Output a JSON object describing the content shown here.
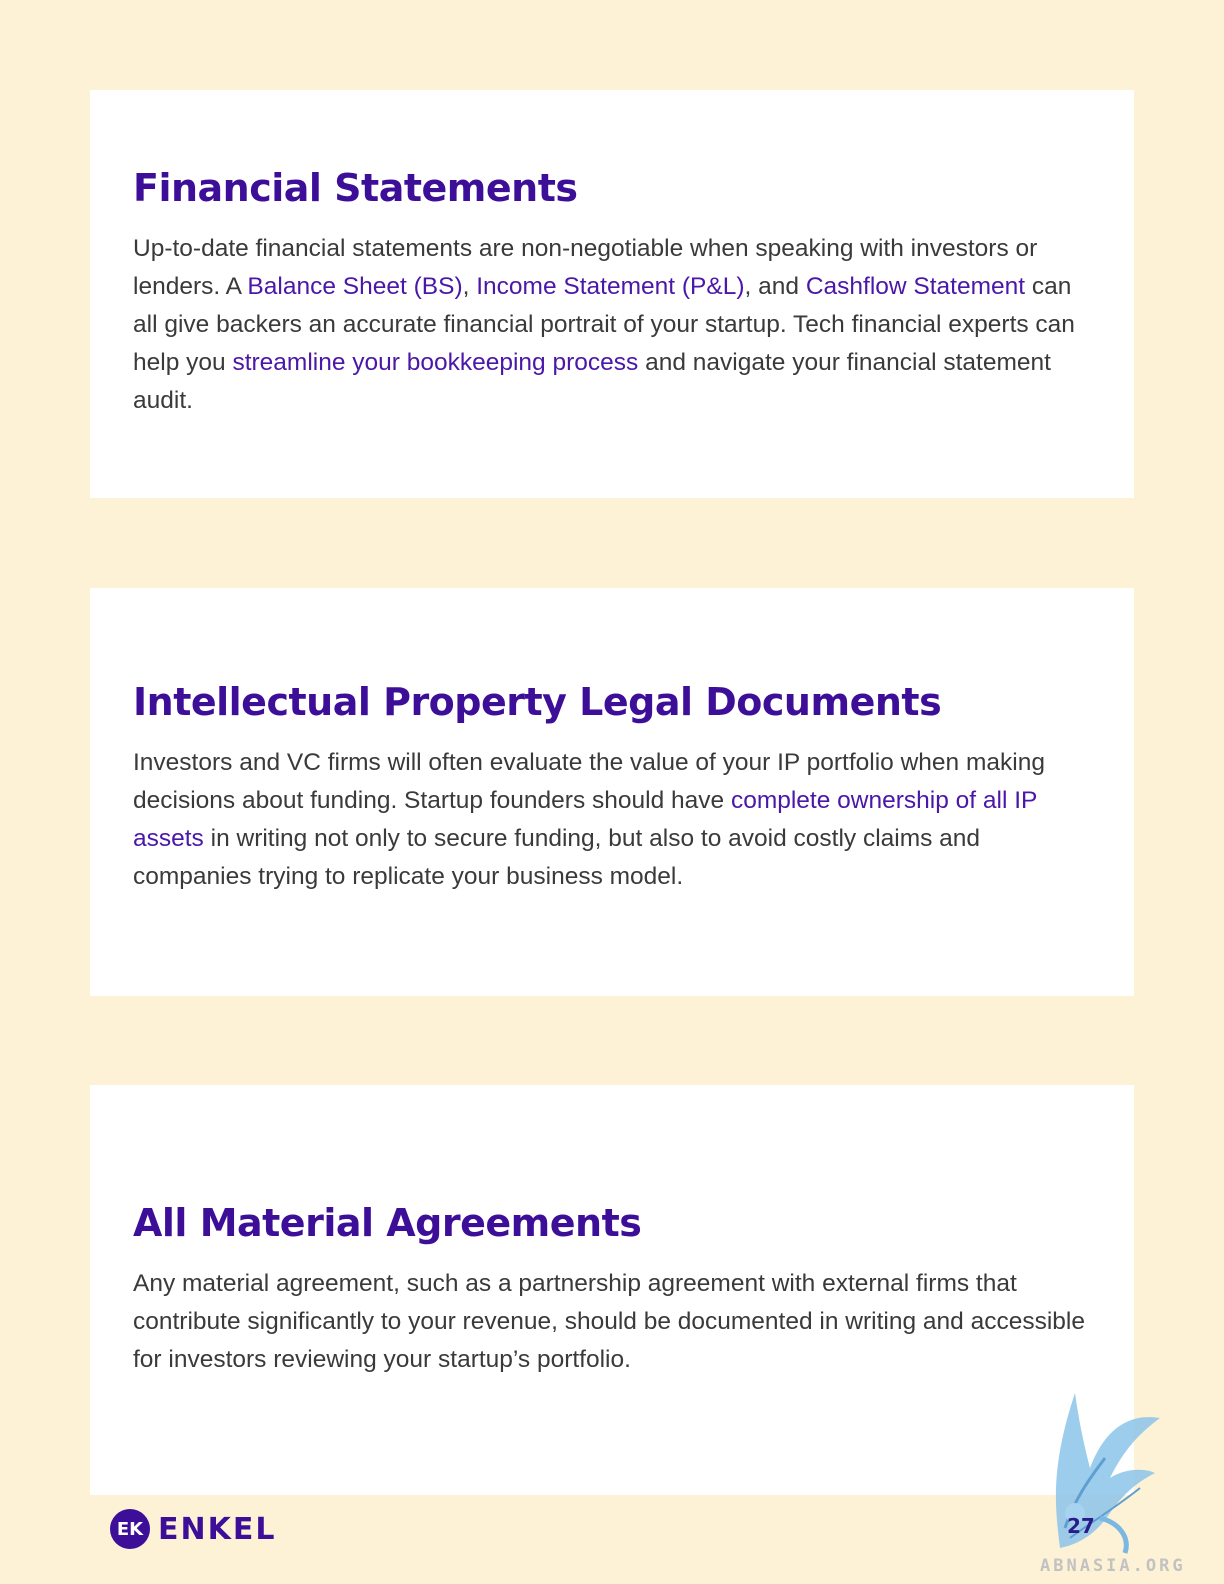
{
  "sections": [
    {
      "title": "Financial Statements",
      "body": {
        "t1": "Up-to-date financial statements are non-negotiable when speaking with investors or lenders. A ",
        "link1": "Balance Sheet (BS)",
        "t2": ", ",
        "link2": "Income Statement (P&L)",
        "t3": ", and ",
        "link3": "Cashflow Statement",
        "t4": " can all give backers an accurate financial portrait of your startup. Tech financial experts can help you ",
        "link4": "streamline your bookkeeping process",
        "t5": " and navigate your financial statement audit."
      }
    },
    {
      "title": "Intellectual Property Legal Documents",
      "body": {
        "t1": "Investors and VC firms will often evaluate the value of your IP portfolio when making decisions about funding. Startup founders should have ",
        "link1": "complete ownership of all IP assets",
        "t2": " in writing not only to secure funding, but also to avoid costly claims and companies trying to replicate your business model."
      }
    },
    {
      "title": "All Material Agreements",
      "body": {
        "t1": "Any material agreement, such as a partnership agreement with external firms that contribute significantly to your revenue, should be documented in writing and accessible for investors reviewing your startup’s portfolio."
      }
    }
  ],
  "footer": {
    "logo_mark": "EK",
    "logo_text": "ENKEL",
    "page_number": "27",
    "watermark": "ABNASIA.ORG"
  },
  "colors": {
    "background": "#fdf2d6",
    "heading": "#3d0f99",
    "link": "#4b17a8",
    "body_text": "#3a3a3a"
  }
}
